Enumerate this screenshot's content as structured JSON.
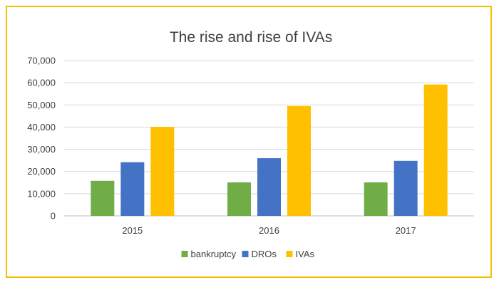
{
  "chart_data": {
    "type": "bar",
    "title": "The rise and rise of IVAs",
    "categories": [
      "2015",
      "2016",
      "2017"
    ],
    "series": [
      {
        "name": "bankruptcy",
        "values": [
          15800,
          15100,
          15100
        ],
        "color": "#70ad47"
      },
      {
        "name": "DROs",
        "values": [
          24200,
          26000,
          24800
        ],
        "color": "#4472c4"
      },
      {
        "name": "IVAs",
        "values": [
          40100,
          49500,
          59200
        ],
        "color": "#ffc000"
      }
    ],
    "ylim": [
      0,
      70000
    ],
    "yticks": [
      "0",
      "10,000",
      "20,000",
      "30,000",
      "40,000",
      "50,000",
      "60,000",
      "70,000"
    ],
    "xlabel": "",
    "ylabel": "",
    "grid": true,
    "legend_position": "bottom",
    "frame_color": "#f2c200"
  }
}
